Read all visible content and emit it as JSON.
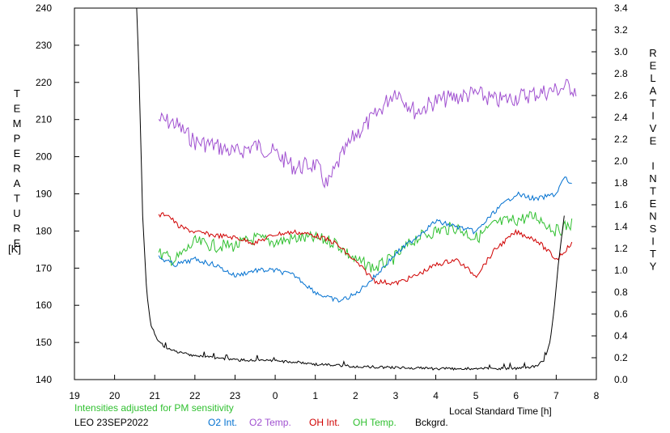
{
  "chart_data": {
    "type": "line",
    "left_axis_label": "TEMPERATURE",
    "left_axis_unit": "[K]",
    "right_axis_label": "RELATIVE INTENSITY",
    "xlabel": "Local Standard Time [h]",
    "note": "Intensities adjusted for PM sensitivity",
    "station_date": "LEO 23SEP2022",
    "x_ticks": [
      "19",
      "20",
      "21",
      "22",
      "23",
      "0",
      "1",
      "2",
      "3",
      "4",
      "5",
      "6",
      "7",
      "8"
    ],
    "x_range_hours": [
      19,
      32
    ],
    "left_ylim": [
      140,
      240
    ],
    "left_ticks": [
      "240",
      "230",
      "220",
      "210",
      "200",
      "190",
      "180",
      "170",
      "160",
      "150",
      "140"
    ],
    "right_ylim": [
      0.0,
      3.4
    ],
    "right_ticks": [
      "3.4",
      "3.2",
      "3.0",
      "2.8",
      "2.6",
      "2.4",
      "2.2",
      "2.0",
      "1.8",
      "1.6",
      "1.4",
      "1.2",
      "1.0",
      "0.8",
      "0.6",
      "0.4",
      "0.2",
      "0.0"
    ],
    "legend": {
      "o2_int": "O2 Int.",
      "o2_temp": "O2 Temp.",
      "oh_int": "OH Int.",
      "oh_temp": "OH Temp.",
      "bckgrd": "Bckgrd."
    },
    "colors": {
      "o2_int": "#0070d0",
      "o2_temp": "#a050d0",
      "oh_int": "#d00000",
      "oh_temp": "#30c030",
      "bckgrd": "#000000",
      "note": "#30c030"
    },
    "series": [
      {
        "key": "o2_temp",
        "axis": "left",
        "x": [
          21.1,
          21.5,
          22.0,
          22.5,
          23.0,
          23.5,
          24.0,
          24.5,
          25.0,
          25.3,
          25.6,
          26.0,
          26.5,
          27.0,
          27.5,
          28.0,
          28.5,
          29.0,
          29.5,
          30.0,
          30.5,
          31.0,
          31.3,
          31.5
        ],
        "values": [
          210,
          209,
          204,
          203,
          201,
          203,
          201,
          197,
          198,
          192,
          199,
          206,
          211,
          218,
          212,
          215,
          216,
          217,
          215,
          216,
          217,
          218,
          219,
          218
        ]
      },
      {
        "key": "oh_temp",
        "axis": "left",
        "x": [
          21.1,
          21.5,
          22.0,
          22.5,
          23.0,
          23.5,
          24.0,
          24.5,
          25.0,
          25.5,
          26.0,
          26.5,
          27.0,
          27.5,
          28.0,
          28.5,
          29.0,
          29.5,
          30.0,
          30.5,
          31.0,
          31.4
        ],
        "values": [
          174,
          172,
          177,
          176,
          176,
          178,
          177,
          178,
          178,
          177,
          172,
          170,
          173,
          178,
          180,
          181,
          178,
          182,
          183,
          184,
          180,
          182
        ]
      },
      {
        "key": "oh_int",
        "axis": "right",
        "x": [
          21.1,
          21.3,
          21.6,
          22.0,
          22.5,
          23.0,
          23.5,
          24.0,
          24.5,
          25.0,
          25.5,
          26.0,
          26.5,
          27.0,
          27.5,
          28.0,
          28.5,
          29.0,
          29.5,
          30.0,
          30.5,
          31.0,
          31.4
        ],
        "values": [
          1.5,
          1.52,
          1.4,
          1.35,
          1.32,
          1.3,
          1.25,
          1.33,
          1.35,
          1.32,
          1.25,
          1.08,
          0.9,
          0.88,
          0.95,
          1.05,
          1.1,
          0.95,
          1.2,
          1.35,
          1.28,
          1.1,
          1.25
        ]
      },
      {
        "key": "o2_int",
        "axis": "right",
        "x": [
          21.1,
          21.5,
          22.0,
          22.5,
          23.0,
          23.5,
          24.0,
          24.5,
          25.0,
          25.3,
          25.6,
          26.0,
          26.5,
          27.0,
          27.5,
          28.0,
          28.5,
          29.0,
          29.5,
          30.0,
          30.5,
          31.0,
          31.2,
          31.4
        ],
        "values": [
          1.12,
          1.05,
          1.1,
          1.05,
          0.95,
          1.0,
          1.0,
          0.95,
          0.8,
          0.75,
          0.72,
          0.78,
          0.95,
          1.15,
          1.3,
          1.45,
          1.4,
          1.35,
          1.55,
          1.7,
          1.65,
          1.7,
          1.85,
          1.78
        ]
      },
      {
        "key": "bckgrd",
        "axis": "right",
        "x": [
          20.55,
          20.6,
          20.65,
          20.7,
          20.8,
          20.9,
          21.0,
          21.1,
          21.3,
          21.6,
          22.0,
          23.0,
          24.0,
          24.5,
          25.0,
          26.0,
          27.0,
          28.0,
          29.0,
          30.0,
          30.5,
          30.7,
          30.85,
          30.95,
          31.05,
          31.15,
          31.2
        ],
        "values": [
          3.4,
          2.9,
          2.2,
          1.5,
          0.8,
          0.5,
          0.42,
          0.35,
          0.28,
          0.25,
          0.22,
          0.18,
          0.17,
          0.16,
          0.14,
          0.12,
          0.11,
          0.1,
          0.1,
          0.1,
          0.12,
          0.18,
          0.35,
          0.65,
          1.05,
          1.35,
          1.5
        ]
      }
    ]
  }
}
